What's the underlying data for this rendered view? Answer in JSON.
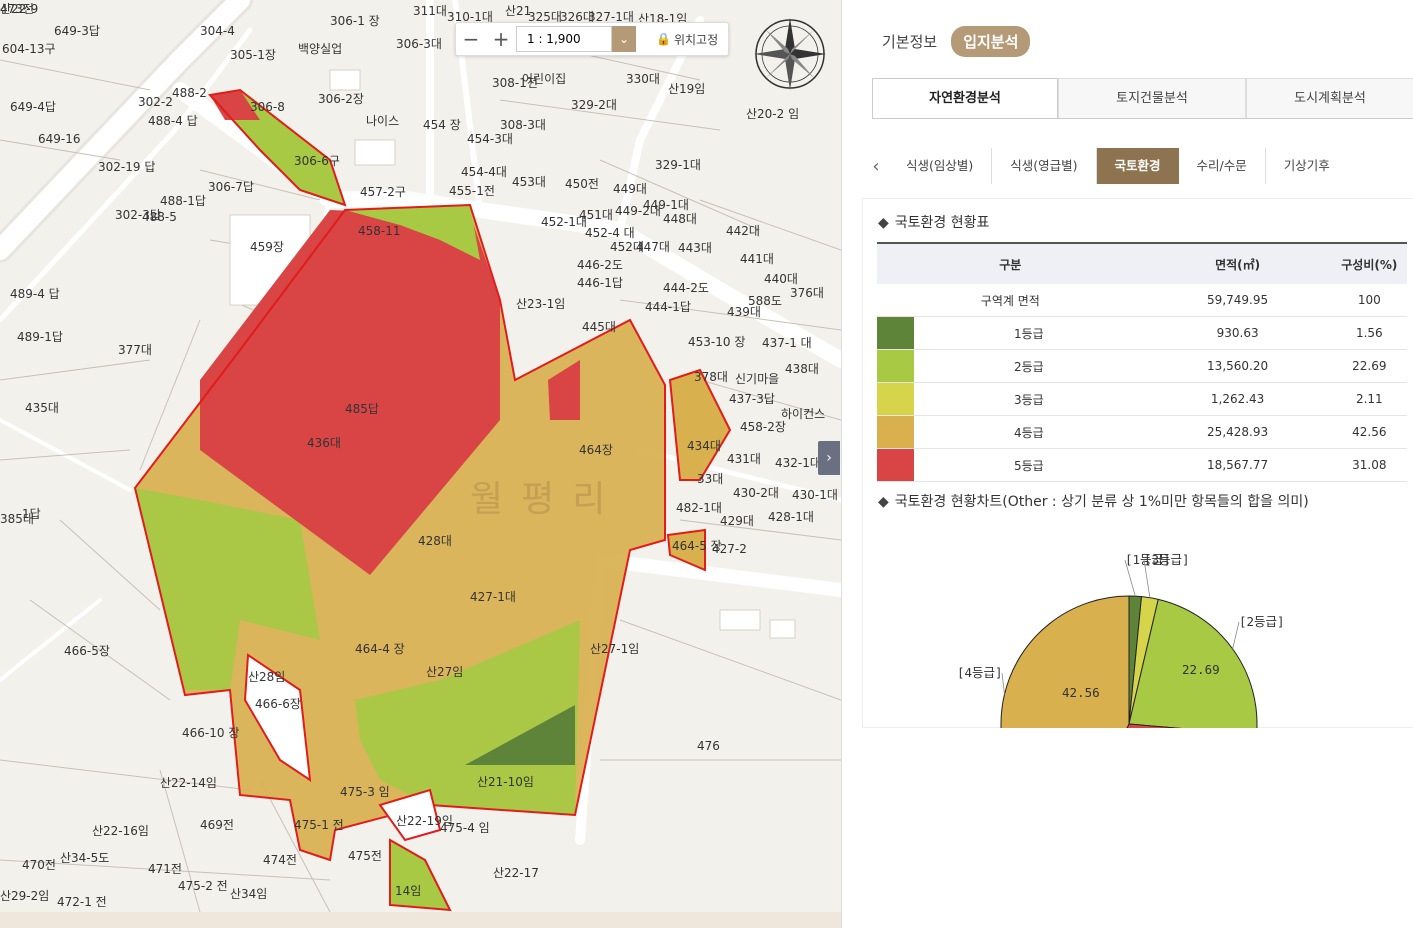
{
  "map": {
    "toolbar": {
      "zoom_out": "−",
      "zoom_in": "+",
      "scale": "1 : 1,900",
      "scale_arrow": "⌄",
      "lock_label": "위치고정"
    },
    "panel_toggle": "›",
    "village_watermark": "월평리",
    "labels": [
      "649-3답",
      "306-1 장",
      "311대",
      "310-1대",
      "325대",
      "326대",
      "327-1대",
      "산18-1임",
      "304-4",
      "305-1장",
      "백양실업",
      "306-3대",
      "산21",
      "어린이집",
      "330대",
      "604-13구",
      "649-4답",
      "649-16",
      "302-2",
      "488-2",
      "306-8",
      "488-4 답",
      "306-2장",
      "나이스",
      "454 장",
      "308-3대",
      "329-2대",
      "산19임",
      "산20-2 임",
      "308-1전",
      "302-19 답",
      "306-6구",
      "454-4대",
      "453대",
      "450전",
      "449대",
      "329-1대",
      "454-3대",
      "488-1답",
      "306-7답",
      "457-2구",
      "455-1전",
      "452-1대",
      "451대",
      "449-2대",
      "449-1대",
      "448대",
      "442대",
      "302-3답",
      "458-11",
      "452-4 대",
      "452대",
      "447대",
      "443대",
      "441대",
      "488-5",
      "459장",
      "446-2도",
      "440대",
      "489-4 답",
      "446-1답",
      "444-2도",
      "376대",
      "산23-1임",
      "444-1답",
      "588도",
      "489-1답",
      "445대",
      "439대",
      "377대",
      "453-10 장",
      "437-1 대",
      "438대",
      "378대",
      "신기마을",
      "437-3답",
      "435대",
      "485답",
      "하이컨스",
      "436대",
      "464장",
      "458-2장",
      "434대",
      "431대",
      "432-1대",
      "33대",
      "430-2대",
      "430-1대",
      "385대",
      "1답",
      "482-1대",
      "428-1대",
      "429대",
      "428대",
      "464-5 장",
      "427-2",
      "427-1대",
      "464-4 장",
      "466-5장",
      "산28임",
      "산27임",
      "466-6장",
      "산27-1임",
      "466-10 장",
      "산22-14임",
      "476",
      "475-3 임",
      "산21-10임",
      "산22-19임",
      "산22-16임",
      "469전",
      "475-1 전",
      "475-4 임",
      "470전",
      "산34-5도",
      "474전",
      "475전",
      "471전",
      "산22-17",
      "475-2 전",
      "산34임",
      "산29-2임",
      "472-1 전",
      "14임",
      "473전",
      "산22-9"
    ]
  },
  "panel": {
    "top_tabs": [
      "기본정보",
      "입지분석"
    ],
    "sub_tabs": [
      "자연환경분석",
      "토지건물분석",
      "도시계획분석"
    ],
    "categories": [
      "식생(임상별)",
      "식생(영급별)",
      "국토환경",
      "수리/수문",
      "기상기후"
    ],
    "cat_prev": "‹",
    "table_title": "국토환경 현황표",
    "table": {
      "headers": [
        "구분",
        "면적(㎡)",
        "구성비(%)"
      ],
      "rows": [
        {
          "label": "구역계 면적",
          "area": "59,749.95",
          "ratio": "100",
          "color": ""
        },
        {
          "label": "1등급",
          "area": "930.63",
          "ratio": "1.56",
          "color": "#5e843a"
        },
        {
          "label": "2등급",
          "area": "13,560.20",
          "ratio": "22.69",
          "color": "#a8c944"
        },
        {
          "label": "3등급",
          "area": "1,262.43",
          "ratio": "2.11",
          "color": "#d6d44a"
        },
        {
          "label": "4등급",
          "area": "25,428.93",
          "ratio": "42.56",
          "color": "#d8b04e"
        },
        {
          "label": "5등급",
          "area": "18,567.77",
          "ratio": "31.08",
          "color": "#d94545"
        }
      ]
    },
    "chart_title": "국토환경 현황차트(Other : 상기 분류 상 1%미만 항목들의 합을 의미)"
  },
  "chart_data": {
    "type": "pie",
    "title": "국토환경 현황차트(Other : 상기 분류 상 1%미만 항목들의 합을 의미)",
    "labels": [
      "1등급",
      "3등급",
      "2등급",
      "5등급",
      "4등급"
    ],
    "values": [
      1.56,
      2.11,
      22.69,
      31.08,
      42.56
    ],
    "colors": [
      "#5e843a",
      "#d6d44a",
      "#a8c944",
      "#d94545",
      "#d8b04e"
    ],
    "callouts": [
      "[1등급]",
      "[3등급]",
      "[2등급]",
      "",
      "[4등급]"
    ],
    "data_labels": [
      "",
      "",
      "22.69",
      "",
      "42.56"
    ]
  }
}
